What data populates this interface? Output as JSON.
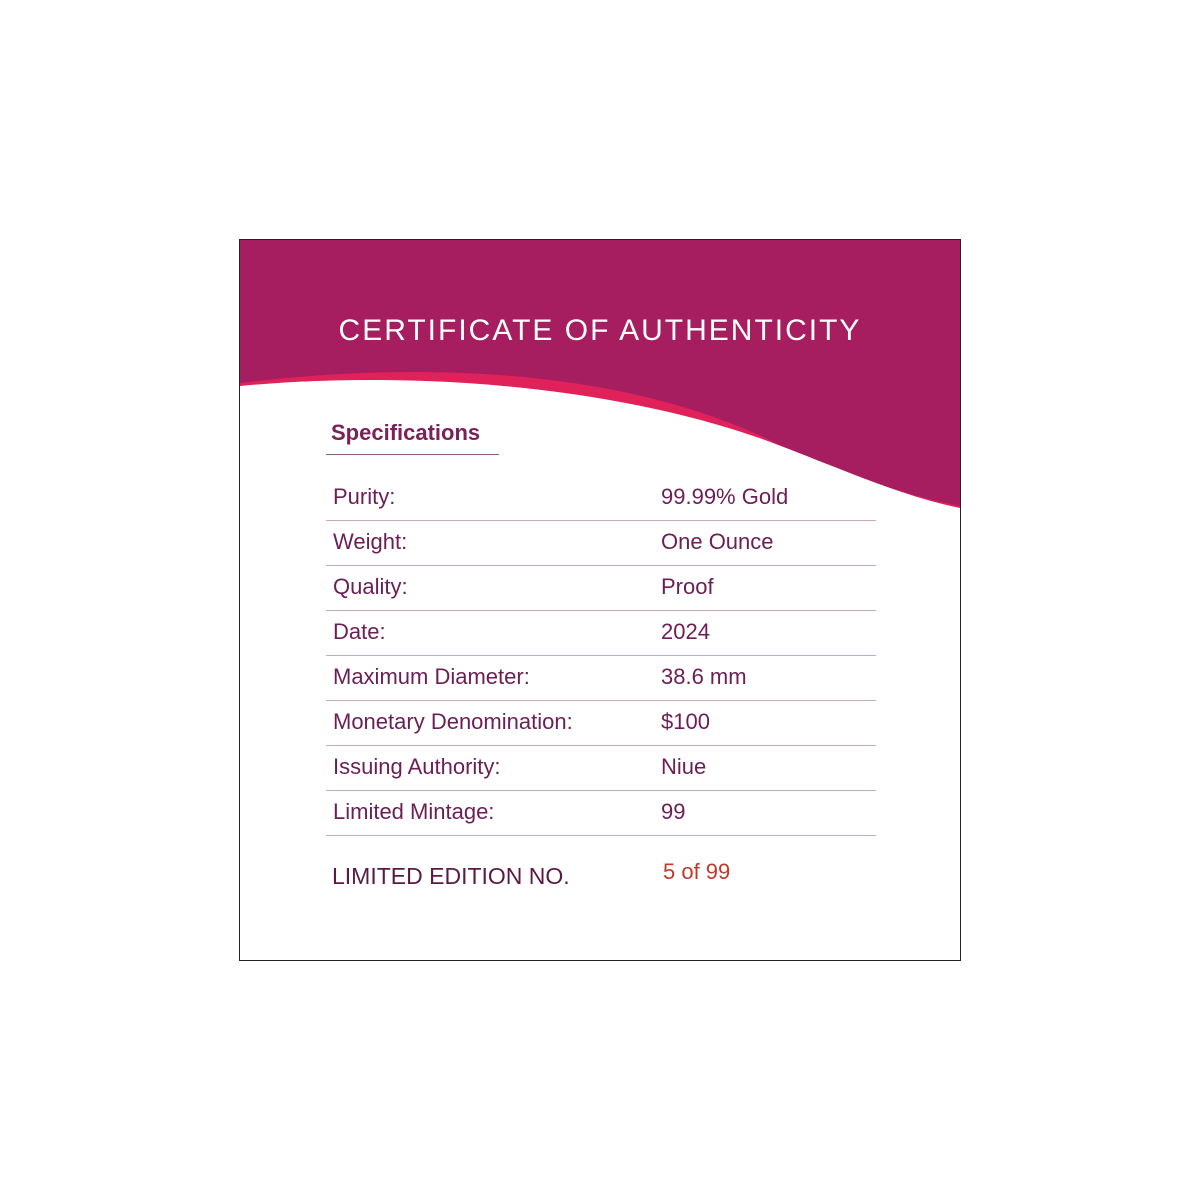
{
  "certificate": {
    "title": "CERTIFICATE OF AUTHENTICITY",
    "section_heading": "Specifications",
    "specs": [
      {
        "label": "Purity:",
        "value": "99.99% Gold"
      },
      {
        "label": "Weight:",
        "value": "One Ounce"
      },
      {
        "label": "Quality:",
        "value": "Proof"
      },
      {
        "label": "Date:",
        "value": "2024"
      },
      {
        "label": "Maximum Diameter:",
        "value": "38.6 mm"
      },
      {
        "label": "Monetary Denomination:",
        "value": "$100"
      },
      {
        "label": "Issuing Authority:",
        "value": "Niue"
      },
      {
        "label": "Limited Mintage:",
        "value": "99"
      }
    ],
    "edition_label": "LIMITED EDITION NO.",
    "edition_value": "5 of 99"
  },
  "colors": {
    "header": "#A61E5F",
    "accent_stripe": "#E0215A",
    "text": "#6B1F55",
    "edition_value": "#C0392B"
  }
}
